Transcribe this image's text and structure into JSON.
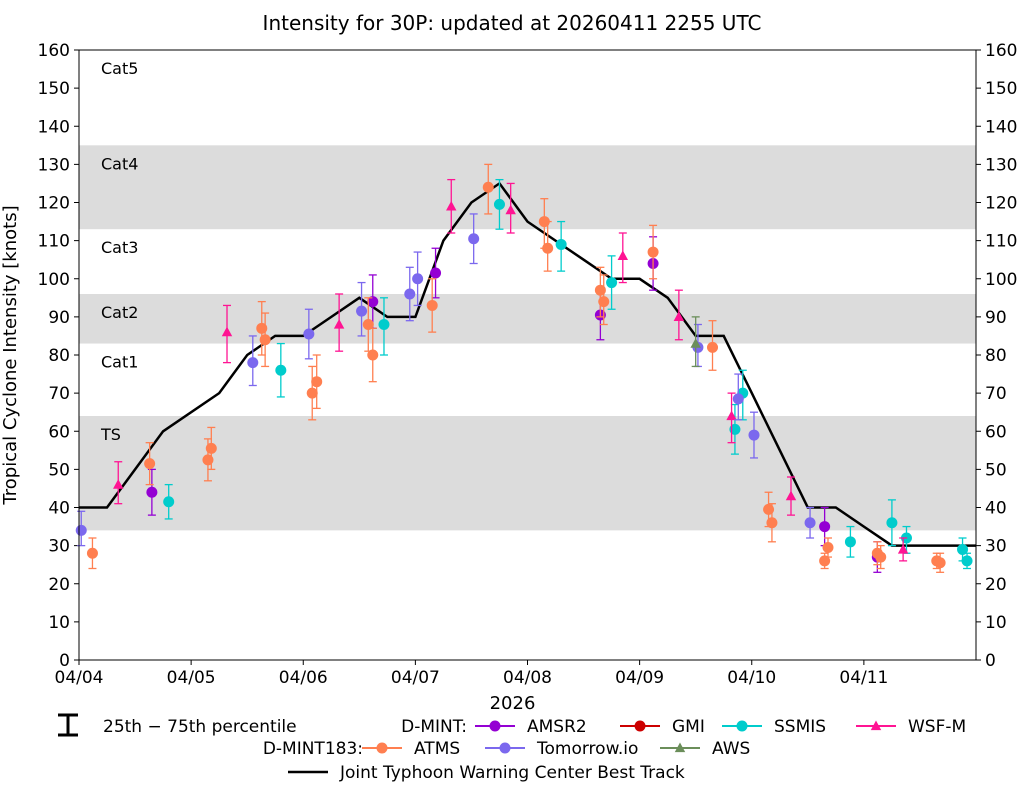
{
  "chart_data": {
    "type": "scatter",
    "title": "Intensity for 30P: updated at 20260411 2255 UTC",
    "ylabel": "Tropical Cyclone Intensity [knots]",
    "xlabel": "2026",
    "ylim": [
      0,
      160
    ],
    "xlim": [
      0,
      8.0
    ],
    "yticks": [
      0,
      10,
      20,
      30,
      40,
      50,
      60,
      70,
      80,
      90,
      100,
      110,
      120,
      130,
      140,
      150,
      160
    ],
    "xticks": [
      {
        "x": 0,
        "label": "04/04"
      },
      {
        "x": 1,
        "label": "04/05"
      },
      {
        "x": 2,
        "label": "04/06"
      },
      {
        "x": 3,
        "label": "04/07"
      },
      {
        "x": 4,
        "label": "04/08"
      },
      {
        "x": 5,
        "label": "04/09"
      },
      {
        "x": 6,
        "label": "04/10"
      },
      {
        "x": 7,
        "label": "04/11"
      }
    ],
    "categories": [
      {
        "label": "TS",
        "ymin": 34,
        "ymax": 64,
        "shaded": true
      },
      {
        "label": "Cat1",
        "ymin": 64,
        "ymax": 83,
        "shaded": false
      },
      {
        "label": "Cat2",
        "ymin": 83,
        "ymax": 96,
        "shaded": true
      },
      {
        "label": "Cat3",
        "ymin": 96,
        "ymax": 113,
        "shaded": false
      },
      {
        "label": "Cat4",
        "ymin": 113,
        "ymax": 135,
        "shaded": true
      },
      {
        "label": "Cat5",
        "ymin": 135,
        "ymax": 160,
        "shaded": false
      }
    ],
    "best_track": {
      "name": "Joint Typhoon Warning Center Best Track",
      "color": "#000000",
      "x": [
        0,
        0.25,
        0.75,
        1.25,
        1.5,
        1.75,
        2.0,
        2.25,
        2.5,
        2.75,
        3.0,
        3.25,
        3.5,
        3.75,
        4.0,
        4.25,
        4.5,
        4.75,
        5.0,
        5.25,
        5.5,
        5.75,
        6.0,
        6.25,
        6.5,
        6.75,
        7.0,
        7.25,
        7.5,
        7.75,
        8.0
      ],
      "y": [
        40,
        40,
        60,
        70,
        80,
        85,
        85,
        90,
        95,
        90,
        90,
        110,
        120,
        125,
        115,
        110,
        105,
        100,
        100,
        95,
        85,
        85,
        70,
        55,
        40,
        40,
        35,
        30,
        30,
        30,
        30
      ]
    },
    "series": [
      {
        "name": "AMSR2",
        "group": "D-MINT",
        "color": "#9400d3",
        "marker": "circle",
        "points": [
          {
            "x": 0.65,
            "y": 44,
            "lo": 38,
            "hi": 50
          },
          {
            "x": 2.62,
            "y": 94,
            "lo": 87,
            "hi": 101
          },
          {
            "x": 3.18,
            "y": 101.5,
            "lo": 95,
            "hi": 108
          },
          {
            "x": 4.65,
            "y": 90.5,
            "lo": 84,
            "hi": 97
          },
          {
            "x": 5.12,
            "y": 104,
            "lo": 97,
            "hi": 111
          },
          {
            "x": 6.65,
            "y": 35,
            "lo": 30,
            "hi": 40
          },
          {
            "x": 7.12,
            "y": 27,
            "lo": 23,
            "hi": 31
          }
        ]
      },
      {
        "name": "GMI",
        "group": "D-MINT",
        "color": "#cc0000",
        "marker": "circle",
        "points": []
      },
      {
        "name": "SSMIS",
        "group": "D-MINT",
        "color": "#00cccc",
        "marker": "circle",
        "points": [
          {
            "x": 0.8,
            "y": 41.5,
            "lo": 37,
            "hi": 46
          },
          {
            "x": 1.8,
            "y": 76,
            "lo": 69,
            "hi": 83
          },
          {
            "x": 2.72,
            "y": 88,
            "lo": 80,
            "hi": 95
          },
          {
            "x": 3.75,
            "y": 119.5,
            "lo": 113,
            "hi": 126
          },
          {
            "x": 4.3,
            "y": 109,
            "lo": 102,
            "hi": 115
          },
          {
            "x": 4.75,
            "y": 99,
            "lo": 92,
            "hi": 106
          },
          {
            "x": 5.85,
            "y": 60.5,
            "lo": 54,
            "hi": 67
          },
          {
            "x": 5.92,
            "y": 70,
            "lo": 63,
            "hi": 76
          },
          {
            "x": 6.88,
            "y": 31,
            "lo": 27,
            "hi": 35
          },
          {
            "x": 7.25,
            "y": 36,
            "lo": 30,
            "hi": 42
          },
          {
            "x": 7.38,
            "y": 32,
            "lo": 28,
            "hi": 35
          },
          {
            "x": 7.88,
            "y": 29,
            "lo": 26,
            "hi": 32
          },
          {
            "x": 7.92,
            "y": 26,
            "lo": 24,
            "hi": 28
          }
        ]
      },
      {
        "name": "WSF-M",
        "group": "D-MINT",
        "color": "#ff1493",
        "marker": "triangle",
        "points": [
          {
            "x": 0.35,
            "y": 46,
            "lo": 41,
            "hi": 52
          },
          {
            "x": 1.32,
            "y": 86,
            "lo": 78,
            "hi": 93
          },
          {
            "x": 2.32,
            "y": 88,
            "lo": 81,
            "hi": 96
          },
          {
            "x": 3.32,
            "y": 119,
            "lo": 112,
            "hi": 126
          },
          {
            "x": 3.85,
            "y": 118,
            "lo": 112,
            "hi": 125
          },
          {
            "x": 4.85,
            "y": 106,
            "lo": 99,
            "hi": 112
          },
          {
            "x": 5.35,
            "y": 90,
            "lo": 84,
            "hi": 97
          },
          {
            "x": 5.82,
            "y": 64,
            "lo": 57,
            "hi": 70
          },
          {
            "x": 6.35,
            "y": 43,
            "lo": 38,
            "hi": 48
          },
          {
            "x": 7.35,
            "y": 29,
            "lo": 26,
            "hi": 32
          }
        ]
      },
      {
        "name": "ATMS",
        "group": "D-MINT183",
        "color": "#ff7f50",
        "marker": "circle",
        "points": [
          {
            "x": 0.12,
            "y": 28,
            "lo": 24,
            "hi": 32
          },
          {
            "x": 0.63,
            "y": 51.5,
            "lo": 46,
            "hi": 57
          },
          {
            "x": 1.15,
            "y": 52.5,
            "lo": 47,
            "hi": 58
          },
          {
            "x": 1.18,
            "y": 55.5,
            "lo": 50,
            "hi": 61
          },
          {
            "x": 1.63,
            "y": 87,
            "lo": 80,
            "hi": 94
          },
          {
            "x": 1.66,
            "y": 84,
            "lo": 77,
            "hi": 91
          },
          {
            "x": 2.08,
            "y": 70,
            "lo": 63,
            "hi": 77
          },
          {
            "x": 2.12,
            "y": 73,
            "lo": 66,
            "hi": 80
          },
          {
            "x": 2.58,
            "y": 88,
            "lo": 81,
            "hi": 95
          },
          {
            "x": 2.62,
            "y": 80,
            "lo": 73,
            "hi": 87
          },
          {
            "x": 3.15,
            "y": 93,
            "lo": 86,
            "hi": 100
          },
          {
            "x": 3.65,
            "y": 124,
            "lo": 117,
            "hi": 130
          },
          {
            "x": 4.15,
            "y": 115,
            "lo": 108,
            "hi": 121
          },
          {
            "x": 4.18,
            "y": 108,
            "lo": 102,
            "hi": 115
          },
          {
            "x": 4.65,
            "y": 97,
            "lo": 90,
            "hi": 103
          },
          {
            "x": 4.68,
            "y": 94,
            "lo": 88,
            "hi": 101
          },
          {
            "x": 5.12,
            "y": 107,
            "lo": 100,
            "hi": 114
          },
          {
            "x": 5.65,
            "y": 82,
            "lo": 76,
            "hi": 89
          },
          {
            "x": 6.15,
            "y": 39.5,
            "lo": 35,
            "hi": 44
          },
          {
            "x": 6.18,
            "y": 36,
            "lo": 31,
            "hi": 41
          },
          {
            "x": 6.65,
            "y": 26,
            "lo": 24,
            "hi": 28
          },
          {
            "x": 6.68,
            "y": 29.5,
            "lo": 27,
            "hi": 32
          },
          {
            "x": 7.12,
            "y": 28,
            "lo": 25,
            "hi": 31
          },
          {
            "x": 7.15,
            "y": 27,
            "lo": 24,
            "hi": 30
          },
          {
            "x": 7.65,
            "y": 26,
            "lo": 24,
            "hi": 28
          },
          {
            "x": 7.68,
            "y": 25.5,
            "lo": 23,
            "hi": 28
          }
        ]
      },
      {
        "name": "Tomorrow.io",
        "group": "D-MINT183",
        "color": "#7b68ee",
        "marker": "circle",
        "points": [
          {
            "x": 0.02,
            "y": 34,
            "lo": 30,
            "hi": 39
          },
          {
            "x": 1.55,
            "y": 78,
            "lo": 72,
            "hi": 85
          },
          {
            "x": 2.05,
            "y": 85.5,
            "lo": 79,
            "hi": 92
          },
          {
            "x": 2.52,
            "y": 91.5,
            "lo": 85,
            "hi": 99
          },
          {
            "x": 2.95,
            "y": 96,
            "lo": 89,
            "hi": 103
          },
          {
            "x": 3.02,
            "y": 100,
            "lo": 93,
            "hi": 107
          },
          {
            "x": 3.52,
            "y": 110.5,
            "lo": 104,
            "hi": 117
          },
          {
            "x": 5.52,
            "y": 82,
            "lo": 77,
            "hi": 88
          },
          {
            "x": 5.88,
            "y": 68.5,
            "lo": 63,
            "hi": 75
          },
          {
            "x": 6.02,
            "y": 59,
            "lo": 53,
            "hi": 65
          },
          {
            "x": 6.52,
            "y": 36,
            "lo": 32,
            "hi": 40
          }
        ]
      },
      {
        "name": "AWS",
        "group": "D-MINT183",
        "color": "#6b8e5a",
        "marker": "triangle",
        "points": [
          {
            "x": 5.5,
            "y": 83,
            "lo": 77,
            "hi": 90
          }
        ]
      }
    ],
    "legend": {
      "percentile_label": "25th − 75th percentile",
      "group1": "D-MINT:",
      "group2": "D-MINT183:",
      "best_track_label": "Joint Typhoon Warning Center Best Track"
    }
  }
}
